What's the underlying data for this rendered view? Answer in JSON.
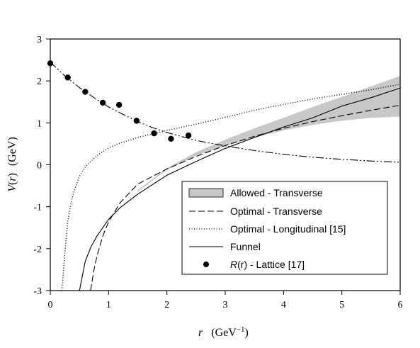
{
  "chart_data": {
    "type": "line",
    "xlabel": {
      "var": "r",
      "unit": "(GeV",
      "exp": "−1",
      "close": ")"
    },
    "ylabel": {
      "var": "V",
      "paren_open": "(",
      "arg": "r",
      "paren_close": ")",
      "unit": "(GeV)"
    },
    "xlim": [
      0,
      6
    ],
    "ylim": [
      -3,
      3
    ],
    "xticks": [
      "0",
      "1",
      "2",
      "3",
      "4",
      "5",
      "6"
    ],
    "yticks": [
      "-3",
      "-2",
      "-1",
      "0",
      "1",
      "2",
      "3"
    ],
    "grid": false,
    "legend_position": "bottom-right",
    "legend": {
      "allowed": "Allowed - Transverse",
      "optimal_transverse": "Optimal - Transverse",
      "optimal_longitudinal": "Optimal - Longitudinal [15]",
      "funnel": "Funnel",
      "lattice_var": "R",
      "lattice_rest": "(r) - Lattice [17]"
    },
    "series": [
      {
        "name": "Allowed - Transverse",
        "style": "band",
        "color": "#c8c8c8",
        "x": [
          1.5,
          2.0,
          2.5,
          3.0,
          3.5,
          4.0,
          4.5,
          5.0,
          5.5,
          6.0
        ],
        "lower": [
          -0.64,
          -0.12,
          0.22,
          0.45,
          0.65,
          0.82,
          0.95,
          1.05,
          1.12,
          1.15
        ],
        "upper": [
          -0.6,
          -0.08,
          0.3,
          0.6,
          0.87,
          1.12,
          1.38,
          1.62,
          1.87,
          2.12
        ]
      },
      {
        "name": "Optimal - Transverse",
        "style": "dashed",
        "x": [
          0.69,
          0.75,
          0.8,
          0.9,
          1.0,
          1.2,
          1.5,
          2.0,
          2.5,
          3.0,
          3.5,
          4.0,
          4.5,
          5.0,
          5.5,
          6.0
        ],
        "y": [
          -3.0,
          -2.5,
          -2.18,
          -1.7,
          -1.36,
          -0.9,
          -0.46,
          -0.1,
          0.2,
          0.46,
          0.68,
          0.87,
          1.03,
          1.17,
          1.3,
          1.42
        ]
      },
      {
        "name": "Optimal - Longitudinal [15]",
        "style": "dotted",
        "x": [
          0.2,
          0.25,
          0.3,
          0.35,
          0.4,
          0.5,
          0.6,
          0.8,
          1.0,
          1.2,
          1.5,
          2.0,
          2.5,
          3.0,
          3.5,
          4.0,
          4.5,
          5.0,
          5.5,
          6.0
        ],
        "y": [
          -3.0,
          -2.1,
          -1.35,
          -0.95,
          -0.65,
          -0.28,
          -0.05,
          0.22,
          0.4,
          0.52,
          0.65,
          0.82,
          0.97,
          1.13,
          1.3,
          1.44,
          1.57,
          1.68,
          1.79,
          1.92
        ]
      },
      {
        "name": "Funnel",
        "style": "solid",
        "x": [
          0.5,
          0.55,
          0.6,
          0.7,
          0.8,
          1.0,
          1.2,
          1.5,
          2.0,
          2.5,
          3.0,
          3.5,
          4.0,
          4.5,
          5.0,
          5.5,
          6.0
        ],
        "y": [
          -3.0,
          -2.65,
          -2.3,
          -1.95,
          -1.7,
          -1.3,
          -1.02,
          -0.7,
          -0.25,
          0.08,
          0.39,
          0.65,
          0.9,
          1.12,
          1.4,
          1.6,
          1.83
        ]
      },
      {
        "name": "dash-dot reference",
        "style": "dashdotdot",
        "x": [
          0.0,
          0.25,
          0.5,
          0.75,
          1.0,
          1.25,
          1.5,
          1.75,
          2.0,
          2.5,
          3.0,
          3.5,
          4.0,
          4.5,
          5.0,
          5.5,
          6.0
        ],
        "y": [
          2.45,
          2.12,
          1.84,
          1.6,
          1.38,
          1.2,
          1.03,
          0.89,
          0.77,
          0.58,
          0.45,
          0.34,
          0.25,
          0.18,
          0.13,
          0.09,
          0.06
        ]
      },
      {
        "name": "R(r) - Lattice [17]",
        "style": "markers",
        "x": [
          0.0,
          0.3,
          0.6,
          0.9,
          1.18,
          1.48,
          1.78,
          2.07,
          2.37
        ],
        "y": [
          2.42,
          2.08,
          1.74,
          1.48,
          1.43,
          1.05,
          0.75,
          0.62,
          0.7
        ]
      }
    ]
  }
}
